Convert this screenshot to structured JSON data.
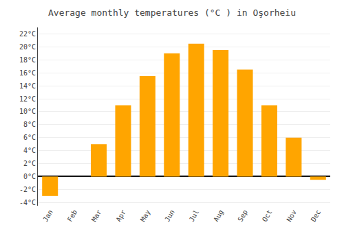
{
  "chart_data": {
    "type": "bar",
    "title": "Average monthly temperatures (°C ) in Oşorheiu",
    "categories": [
      "Jan",
      "Feb",
      "Mar",
      "Apr",
      "May",
      "Jun",
      "Jul",
      "Aug",
      "Sep",
      "Oct",
      "Nov",
      "Dec"
    ],
    "values": [
      -3.0,
      0.0,
      5.0,
      11.0,
      15.5,
      19.0,
      20.5,
      19.5,
      16.5,
      11.0,
      6.0,
      -0.5
    ],
    "color": "#FFA500",
    "ylim": [
      -4.5,
      23.0
    ],
    "yticks": [
      {
        "value": -4,
        "label": "-4°C"
      },
      {
        "value": -2,
        "label": "-2°C"
      },
      {
        "value": 0,
        "label": "0°C"
      },
      {
        "value": 2,
        "label": "2°C"
      },
      {
        "value": 4,
        "label": "4°C"
      },
      {
        "value": 6,
        "label": "6°C"
      },
      {
        "value": 8,
        "label": "8°C"
      },
      {
        "value": 10,
        "label": "10°C"
      },
      {
        "value": 12,
        "label": "12°C"
      },
      {
        "value": 14,
        "label": "14°C"
      },
      {
        "value": 16,
        "label": "16°C"
      },
      {
        "value": 18,
        "label": "18°C"
      },
      {
        "value": 20,
        "label": "20°C"
      },
      {
        "value": 22,
        "label": "22°C"
      }
    ],
    "grid": true
  }
}
